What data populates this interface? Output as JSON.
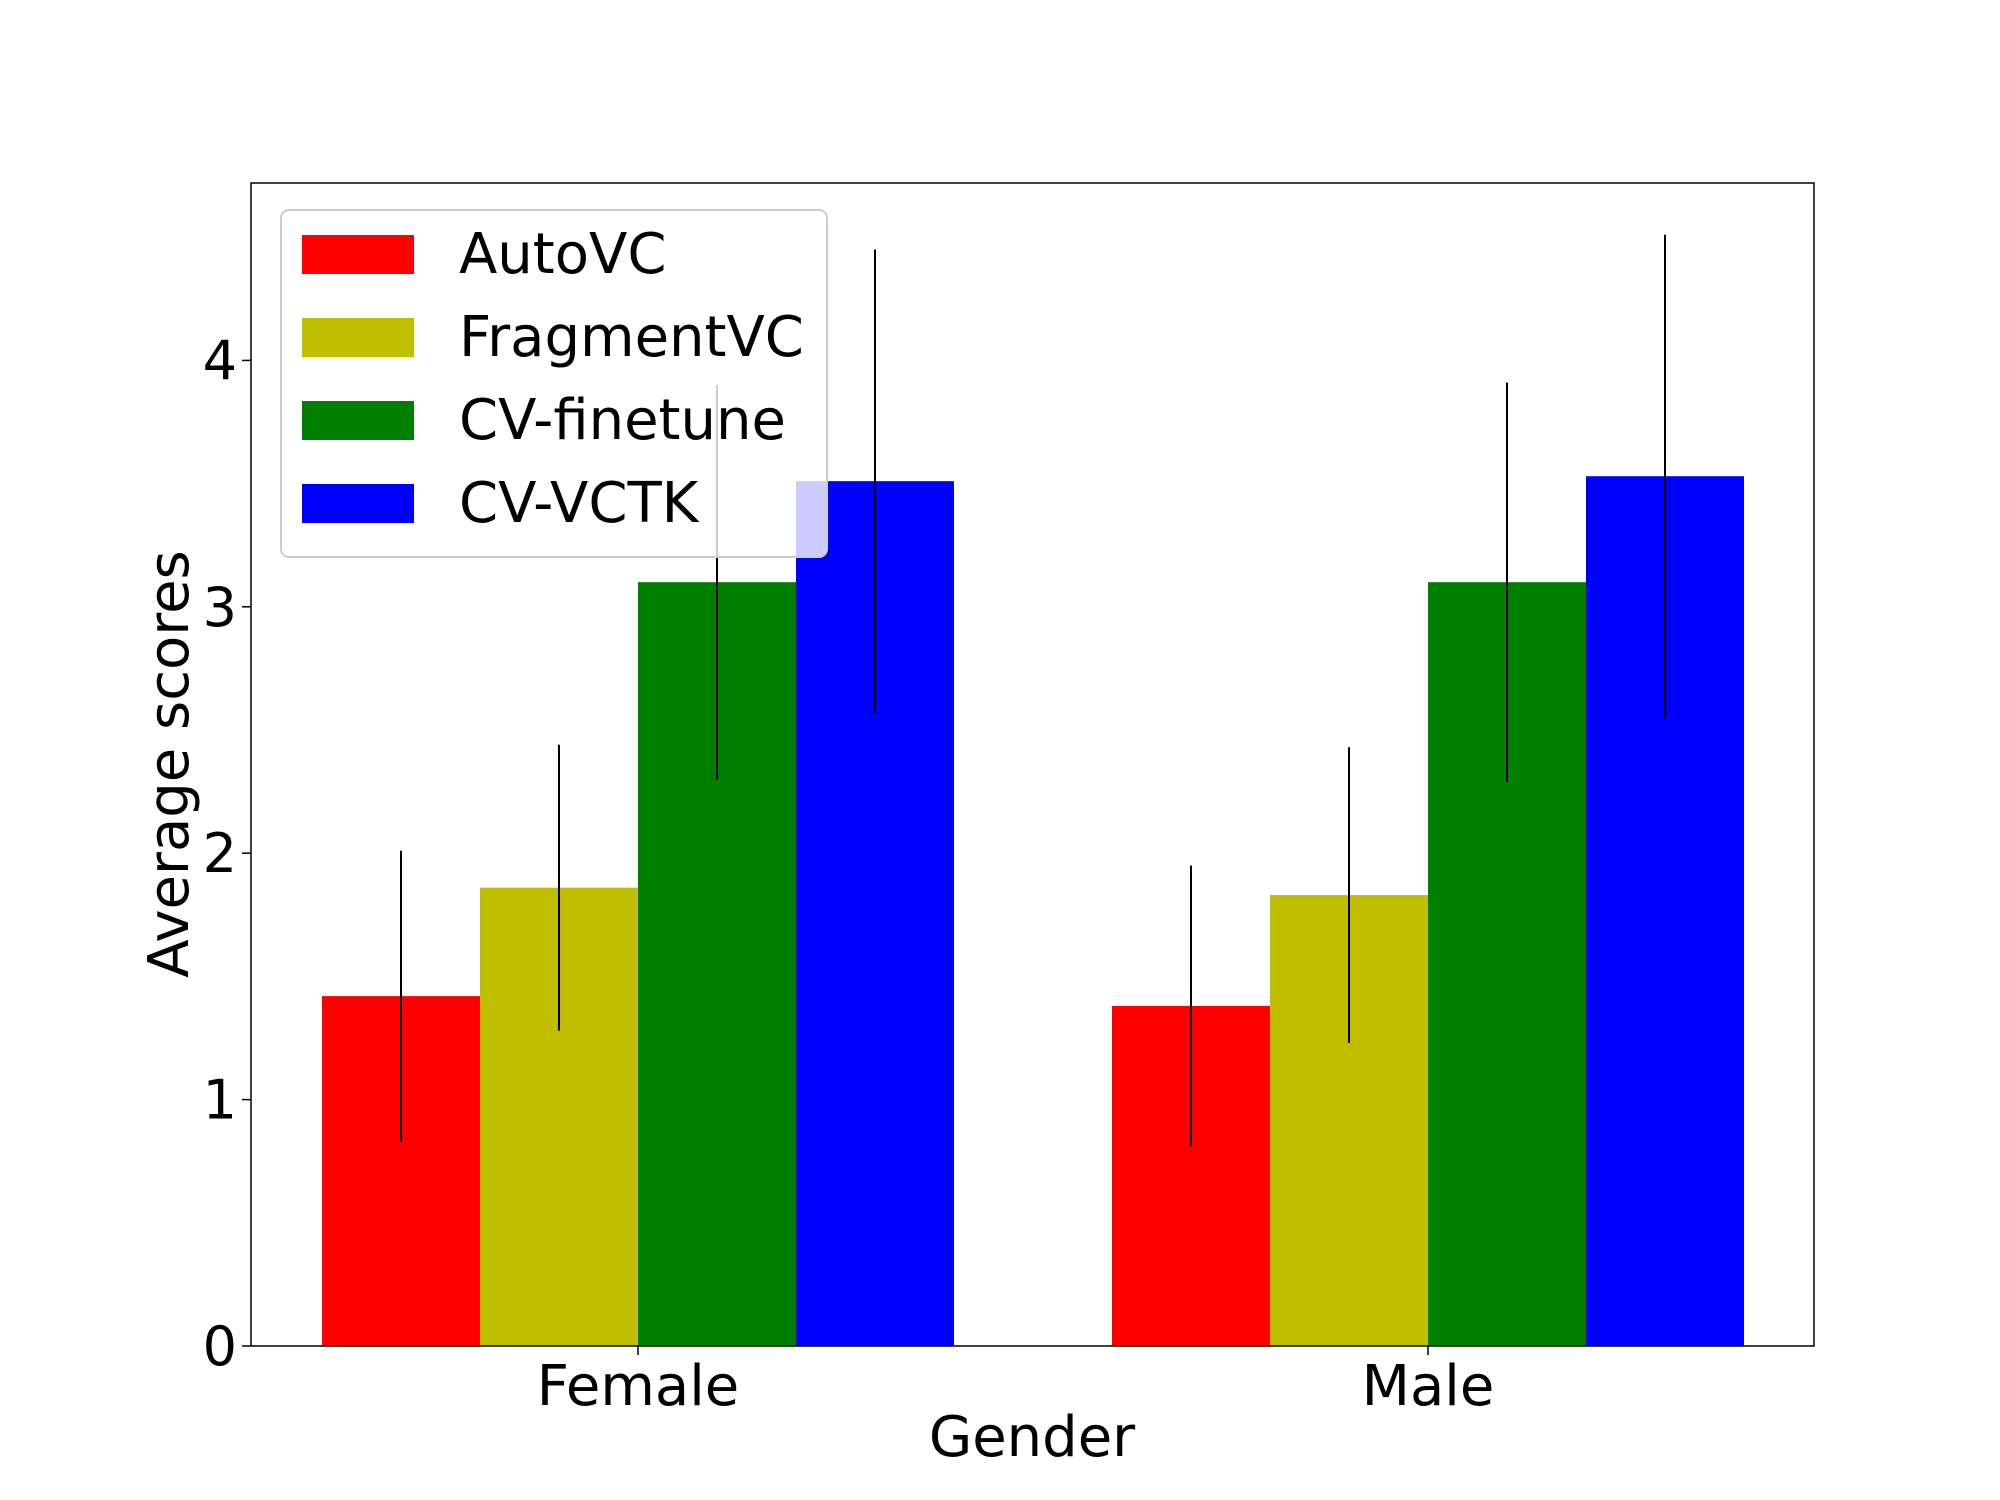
{
  "chart_data": {
    "type": "bar",
    "title": "",
    "xlabel": "Gender",
    "ylabel": "Average scores",
    "categories": [
      "Female",
      "Male"
    ],
    "ylim": [
      0,
      4.72
    ],
    "yticks": [
      "0",
      "1",
      "2",
      "3",
      "4"
    ],
    "grid": false,
    "legend_position": "upper-left",
    "series": [
      {
        "name": "AutoVC",
        "color": "#ff0000",
        "values": [
          1.42,
          1.38
        ],
        "errors": [
          0.59,
          0.57
        ]
      },
      {
        "name": "FragmentVC",
        "color": "#bfbf00",
        "values": [
          1.86,
          1.83
        ],
        "errors": [
          0.58,
          0.6
        ]
      },
      {
        "name": "CV-finetune",
        "color": "#008000",
        "values": [
          3.1,
          3.1
        ],
        "errors": [
          0.8,
          0.81
        ]
      },
      {
        "name": "CV-VCTK",
        "color": "#0000ff",
        "values": [
          3.51,
          3.53
        ],
        "errors": [
          0.94,
          0.98
        ]
      }
    ]
  }
}
